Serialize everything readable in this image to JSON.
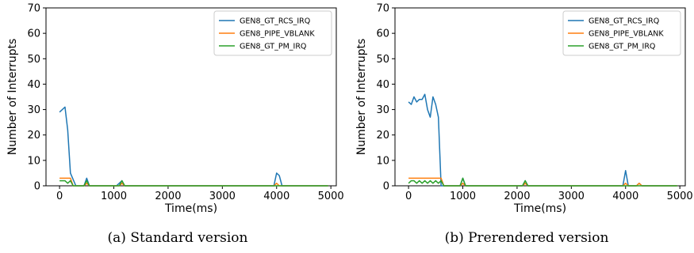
{
  "chart_data": [
    {
      "type": "line",
      "caption": "(a) Standard version",
      "xlabel": "Time(ms)",
      "ylabel": "Number of Interrupts",
      "xlim": [
        -250,
        5100
      ],
      "ylim": [
        0,
        70
      ],
      "xticks": [
        0,
        1000,
        2000,
        3000,
        4000,
        5000
      ],
      "yticks": [
        0,
        10,
        20,
        30,
        40,
        50,
        60,
        70
      ],
      "legend_position": "top-right",
      "series": [
        {
          "name": "GEN8_GT_RCS_IRQ",
          "color": "#1f77b4",
          "x": [
            0,
            100,
            150,
            200,
            300,
            450,
            500,
            550,
            1050,
            1150,
            1200,
            3950,
            4000,
            4050,
            4100,
            4150,
            4950
          ],
          "y": [
            29,
            31,
            22,
            5,
            0,
            0,
            3,
            0,
            0,
            2,
            0,
            0,
            5,
            4,
            0,
            0,
            0
          ]
        },
        {
          "name": "GEN8_PIPE_VBLANK",
          "color": "#ff7f0e",
          "x": [
            0,
            200,
            250,
            450,
            500,
            550,
            1100,
            1150,
            1200,
            3950,
            4000,
            4050,
            4950
          ],
          "y": [
            3,
            3,
            0,
            0,
            1,
            0,
            0,
            1,
            0,
            0,
            1,
            0,
            0
          ]
        },
        {
          "name": "GEN8_GT_PM_IRQ",
          "color": "#2ca02c",
          "x": [
            0,
            100,
            150,
            200,
            250,
            450,
            500,
            550,
            1100,
            1150,
            1200,
            4950
          ],
          "y": [
            2,
            2,
            1,
            2,
            0,
            0,
            2,
            0,
            0,
            2,
            0,
            0
          ]
        }
      ]
    },
    {
      "type": "line",
      "caption": "(b) Prerendered version",
      "xlabel": "Time(ms)",
      "ylabel": "Number of Interrupts",
      "xlim": [
        -250,
        5100
      ],
      "ylim": [
        0,
        70
      ],
      "xticks": [
        0,
        1000,
        2000,
        3000,
        4000,
        5000
      ],
      "yticks": [
        0,
        10,
        20,
        30,
        40,
        50,
        60,
        70
      ],
      "legend_position": "top-right",
      "series": [
        {
          "name": "GEN8_GT_RCS_IRQ",
          "color": "#1f77b4",
          "x": [
            0,
            50,
            100,
            150,
            200,
            250,
            300,
            350,
            400,
            450,
            500,
            550,
            600,
            650,
            950,
            1000,
            1050,
            2100,
            2150,
            2200,
            3950,
            4000,
            4050,
            4200,
            4250,
            4300,
            4950
          ],
          "y": [
            33,
            32,
            35,
            33,
            34,
            34,
            36,
            30,
            27,
            35,
            32,
            27,
            0,
            0,
            0,
            3,
            0,
            0,
            2,
            0,
            0,
            6,
            0,
            0,
            1,
            0,
            0
          ]
        },
        {
          "name": "GEN8_PIPE_VBLANK",
          "color": "#ff7f0e",
          "x": [
            0,
            600,
            650,
            950,
            1000,
            1050,
            2100,
            2150,
            2200,
            3950,
            4000,
            4050,
            4200,
            4250,
            4300,
            4950
          ],
          "y": [
            3,
            3,
            0,
            0,
            1,
            0,
            0,
            1,
            0,
            0,
            1,
            0,
            0,
            1,
            0,
            0
          ]
        },
        {
          "name": "GEN8_GT_PM_IRQ",
          "color": "#2ca02c",
          "x": [
            0,
            50,
            100,
            150,
            200,
            250,
            300,
            350,
            400,
            450,
            500,
            550,
            600,
            650,
            950,
            1000,
            1050,
            2100,
            2150,
            2200,
            4950
          ],
          "y": [
            1,
            2,
            2,
            1,
            2,
            1,
            2,
            1,
            2,
            1,
            2,
            1,
            2,
            0,
            0,
            3,
            0,
            0,
            2,
            0,
            0
          ]
        }
      ]
    }
  ]
}
